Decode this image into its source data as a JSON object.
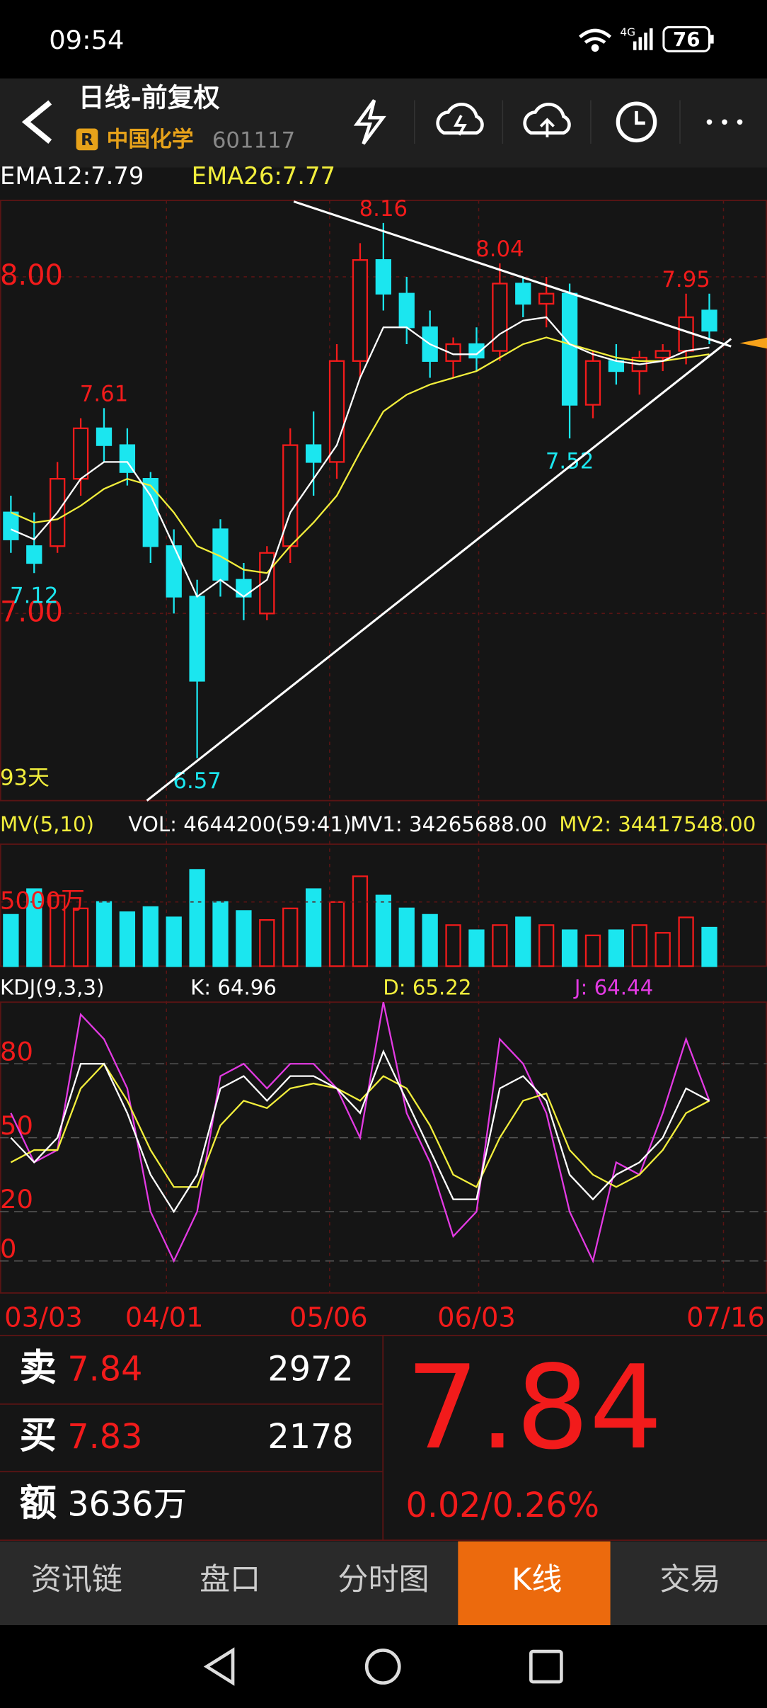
{
  "status_bar": {
    "time": "09:54",
    "network": "4G",
    "battery": "76"
  },
  "header": {
    "title": "日线-前复权",
    "badge": "R",
    "stock_name": "中国化学",
    "stock_code": "601117"
  },
  "kline": {
    "ema_labels": [
      "EMA12:7.79",
      "EMA26:7.77"
    ],
    "ylim": [
      6.444,
      8.227
    ],
    "yticks": [
      {
        "value": 8,
        "label": "8.00"
      },
      {
        "value": 7,
        "label": "7.00"
      }
    ],
    "candles": [
      [
        7.3,
        7.35,
        7.18,
        7.22
      ],
      [
        7.2,
        7.3,
        7.12,
        7.15
      ],
      [
        7.2,
        7.45,
        7.18,
        7.4
      ],
      [
        7.4,
        7.58,
        7.35,
        7.55
      ],
      [
        7.55,
        7.61,
        7.45,
        7.5
      ],
      [
        7.5,
        7.55,
        7.38,
        7.42
      ],
      [
        7.4,
        7.42,
        7.15,
        7.2
      ],
      [
        7.2,
        7.25,
        7.0,
        7.05
      ],
      [
        7.05,
        7.1,
        6.57,
        6.8
      ],
      [
        7.25,
        7.28,
        7.05,
        7.1
      ],
      [
        7.1,
        7.15,
        6.98,
        7.05
      ],
      [
        7.0,
        7.2,
        6.98,
        7.18
      ],
      [
        7.2,
        7.55,
        7.15,
        7.5
      ],
      [
        7.5,
        7.6,
        7.35,
        7.45
      ],
      [
        7.45,
        7.8,
        7.4,
        7.75
      ],
      [
        7.75,
        8.1,
        7.7,
        8.05
      ],
      [
        8.05,
        8.16,
        7.9,
        7.95
      ],
      [
        7.95,
        8.0,
        7.8,
        7.85
      ],
      [
        7.85,
        7.9,
        7.7,
        7.75
      ],
      [
        7.75,
        7.82,
        7.7,
        7.8
      ],
      [
        7.8,
        7.85,
        7.72,
        7.76
      ],
      [
        7.78,
        8.04,
        7.75,
        7.98
      ],
      [
        7.98,
        8.0,
        7.88,
        7.92
      ],
      [
        7.92,
        8.0,
        7.85,
        7.95
      ],
      [
        7.95,
        7.98,
        7.52,
        7.62
      ],
      [
        7.62,
        7.78,
        7.58,
        7.75
      ],
      [
        7.75,
        7.8,
        7.68,
        7.72
      ],
      [
        7.72,
        7.78,
        7.65,
        7.76
      ],
      [
        7.76,
        7.8,
        7.72,
        7.78
      ],
      [
        7.78,
        7.95,
        7.74,
        7.88
      ],
      [
        7.9,
        7.95,
        7.8,
        7.84
      ]
    ],
    "ema12": [
      7.25,
      7.22,
      7.3,
      7.4,
      7.45,
      7.45,
      7.35,
      7.2,
      7.05,
      7.1,
      7.05,
      7.1,
      7.3,
      7.4,
      7.5,
      7.7,
      7.85,
      7.85,
      7.8,
      7.77,
      7.77,
      7.83,
      7.87,
      7.88,
      7.8,
      7.77,
      7.75,
      7.74,
      7.75,
      7.78,
      7.79
    ],
    "ema26": [
      7.3,
      7.27,
      7.28,
      7.32,
      7.37,
      7.4,
      7.38,
      7.3,
      7.2,
      7.17,
      7.13,
      7.12,
      7.2,
      7.27,
      7.35,
      7.48,
      7.6,
      7.65,
      7.68,
      7.7,
      7.72,
      7.76,
      7.8,
      7.82,
      7.8,
      7.78,
      7.76,
      7.75,
      7.75,
      7.76,
      7.77
    ],
    "highs_marked": [
      8.16,
      8.04,
      7.95,
      7.61
    ],
    "lows_marked": [
      7.52,
      7.12,
      6.57
    ],
    "period_label": "93天"
  },
  "volume": {
    "labels": [
      "MV(5,10)",
      "VOL: 4644200(59:41)",
      "MV1: 34265688.00",
      "MV2: 34417548.00"
    ],
    "ylim": [
      0,
      9500
    ],
    "yticks": [
      {
        "value": 5000,
        "label": "5000万"
      }
    ],
    "values": [
      4000,
      6000,
      5500,
      4500,
      5000,
      4200,
      4600,
      3800,
      7500,
      5000,
      4300,
      3600,
      4500,
      6000,
      5000,
      7000,
      5500,
      4500,
      4000,
      3200,
      2800,
      3200,
      3800,
      3200,
      2800,
      2400,
      2800,
      3200,
      2600,
      3800,
      3000
    ]
  },
  "kdj": {
    "labels": [
      "KDJ(9,3,3)",
      "K: 64.96",
      "D: 65.22",
      "J: 64.44"
    ],
    "ylim": [
      -13,
      105
    ],
    "yticks": [
      80,
      50,
      20,
      0
    ],
    "k": [
      50,
      40,
      50,
      80,
      80,
      60,
      35,
      20,
      35,
      70,
      75,
      65,
      75,
      75,
      70,
      60,
      85,
      65,
      45,
      25,
      25,
      70,
      75,
      65,
      35,
      25,
      35,
      40,
      50,
      70,
      65
    ],
    "d": [
      40,
      45,
      45,
      70,
      80,
      65,
      45,
      30,
      30,
      55,
      65,
      62,
      70,
      72,
      70,
      65,
      75,
      70,
      55,
      35,
      30,
      50,
      65,
      68,
      45,
      35,
      30,
      35,
      45,
      60,
      65
    ],
    "j": [
      60,
      40,
      45,
      100,
      90,
      70,
      20,
      0,
      20,
      75,
      80,
      70,
      80,
      80,
      70,
      50,
      105,
      60,
      40,
      10,
      20,
      90,
      80,
      60,
      20,
      0,
      40,
      35,
      60,
      90,
      65
    ]
  },
  "dates": [
    "03/03",
    "04/01",
    "05/06",
    "06/03",
    "07/16"
  ],
  "quote": {
    "sell": {
      "label": "卖",
      "price": "7.84",
      "volume": "2972"
    },
    "buy": {
      "label": "买",
      "price": "7.83",
      "volume": "2178"
    },
    "amount": {
      "label": "额",
      "value": "3636万"
    },
    "price": "7.84",
    "change": "0.02/0.26%"
  },
  "tabs": [
    "资讯链",
    "盘口",
    "分时图",
    "K线",
    "交易"
  ],
  "active_tab": "K线"
}
